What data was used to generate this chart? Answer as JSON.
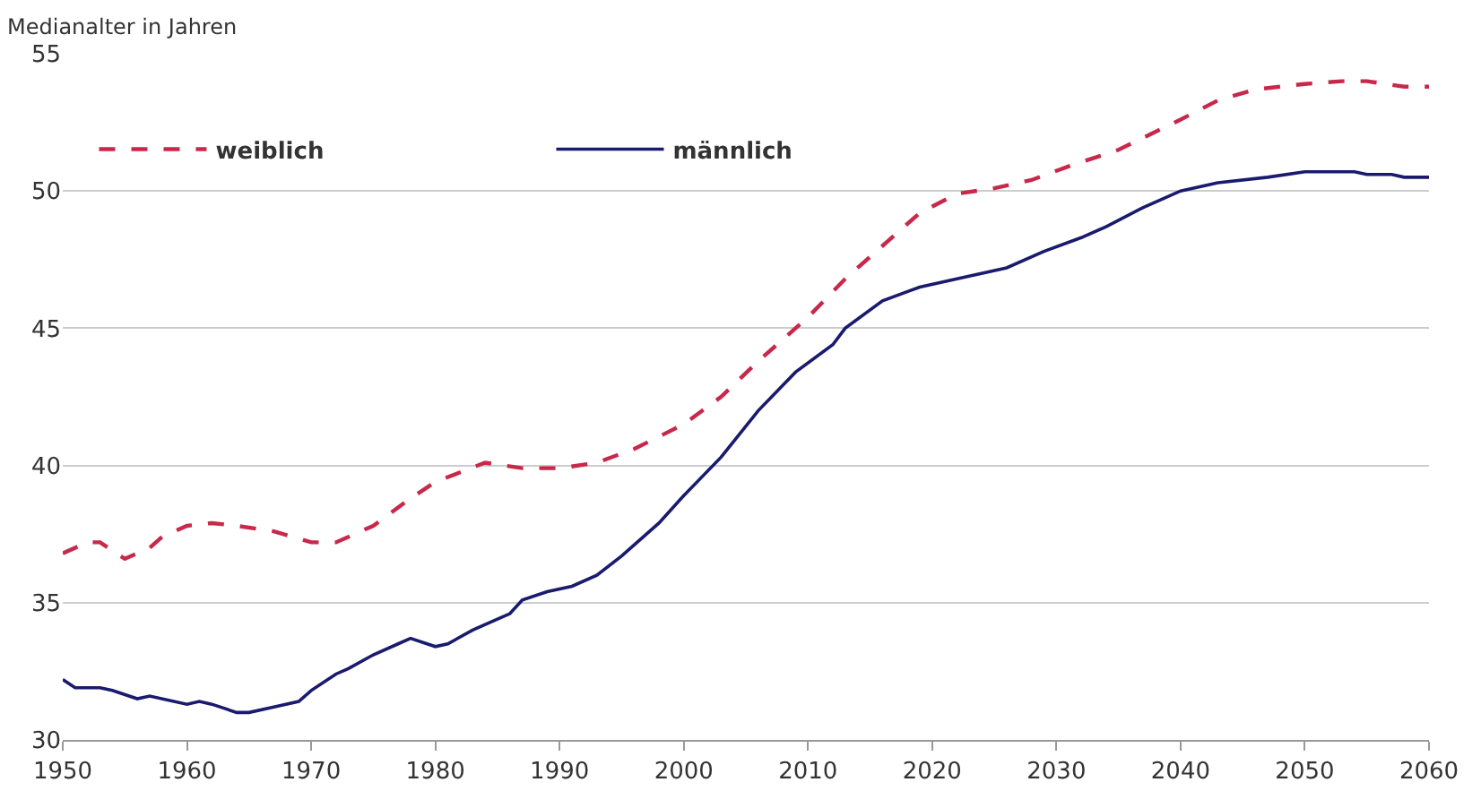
{
  "chart_data": {
    "type": "line",
    "ylabel": "Medianalter in Jahren",
    "xlim": [
      1950,
      2060
    ],
    "xticks": [
      1950,
      1960,
      1970,
      1980,
      1990,
      2000,
      2010,
      2020,
      2030,
      2040,
      2050,
      2060
    ],
    "ylim": [
      30,
      55
    ],
    "yticks": [
      30,
      35,
      40,
      45,
      50,
      55
    ],
    "grid": "y",
    "legend": "top left",
    "series": [
      {
        "name": "weiblich",
        "color": "#c8284a",
        "line_style": "dashed",
        "x": [
          1950,
          1952,
          1953,
          1955,
          1957,
          1958,
          1960,
          1962,
          1964,
          1967,
          1970,
          1972,
          1975,
          1978,
          1980,
          1984,
          1987,
          1990,
          1993,
          1996,
          2000,
          2003,
          2006,
          2010,
          2013,
          2016,
          2019,
          2022,
          2025,
          2028,
          2031,
          2035,
          2040,
          2043,
          2046,
          2050,
          2053,
          2055,
          2058,
          2060
        ],
        "values": [
          36.8,
          37.2,
          37.2,
          36.6,
          37.0,
          37.4,
          37.8,
          37.9,
          37.8,
          37.6,
          37.2,
          37.2,
          37.8,
          38.8,
          39.4,
          40.1,
          39.9,
          39.9,
          40.1,
          40.6,
          41.5,
          42.5,
          43.8,
          45.4,
          46.8,
          48.0,
          49.2,
          49.9,
          50.1,
          50.4,
          50.9,
          51.5,
          52.6,
          53.3,
          53.7,
          53.9,
          54.0,
          54.0,
          53.8,
          53.8
        ]
      },
      {
        "name": "männlich",
        "color": "#1a1a6e",
        "line_style": "solid",
        "x": [
          1950,
          1951,
          1953,
          1954,
          1956,
          1957,
          1960,
          1961,
          1962,
          1964,
          1965,
          1967,
          1969,
          1970,
          1972,
          1973,
          1975,
          1977,
          1978,
          1980,
          1981,
          1983,
          1985,
          1986,
          1987,
          1989,
          1991,
          1993,
          1995,
          1998,
          2000,
          2003,
          2006,
          2009,
          2012,
          2013,
          2016,
          2019,
          2022,
          2026,
          2029,
          2032,
          2034,
          2037,
          2040,
          2043,
          2047,
          2050,
          2054,
          2055,
          2057,
          2058,
          2060
        ],
        "values": [
          32.2,
          31.9,
          31.9,
          31.8,
          31.5,
          31.6,
          31.3,
          31.4,
          31.3,
          31.0,
          31.0,
          31.2,
          31.4,
          31.8,
          32.4,
          32.6,
          33.1,
          33.5,
          33.7,
          33.4,
          33.5,
          34.0,
          34.4,
          34.6,
          35.1,
          35.4,
          35.6,
          36.0,
          36.7,
          37.9,
          38.9,
          40.3,
          42.0,
          43.4,
          44.4,
          45.0,
          46.0,
          46.5,
          46.8,
          47.2,
          47.8,
          48.3,
          48.7,
          49.4,
          50.0,
          50.3,
          50.5,
          50.7,
          50.7,
          50.6,
          50.6,
          50.5,
          50.5
        ]
      }
    ]
  }
}
